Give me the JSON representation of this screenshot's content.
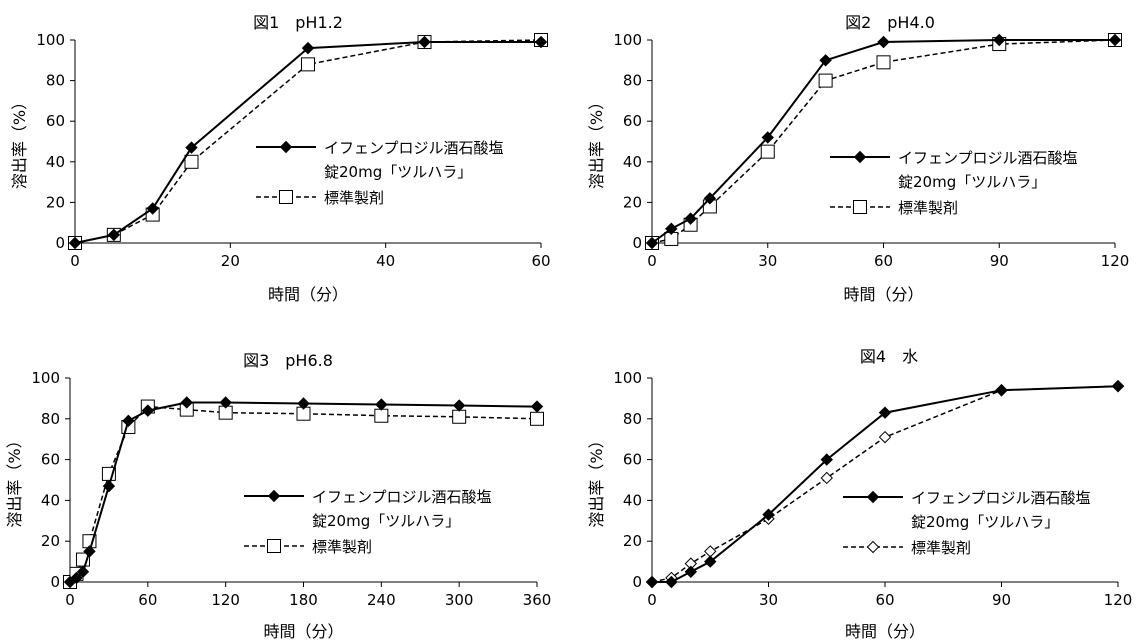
{
  "chart_data": [
    {
      "type": "line",
      "title": "図1　pH1.2",
      "xlabel": "時間（分）",
      "ylabel": "溶出率（%）",
      "xlim": [
        0,
        60
      ],
      "ylim": [
        0,
        100
      ],
      "xticks": [
        0,
        20,
        40,
        60
      ],
      "yticks": [
        0,
        20,
        40,
        60,
        80,
        100
      ],
      "grid": false,
      "legend_position": "center-right",
      "series": [
        {
          "name": "イフェンプロジル酒石酸塩 錠20mg「ツルハラ」",
          "legend_lines": [
            "イフェンプロジル酒石酸塩",
            "錠20mg「ツルハラ」"
          ],
          "marker": "filled-diamond",
          "line": "solid",
          "x": [
            0,
            5,
            10,
            15,
            30,
            45,
            60
          ],
          "y": [
            0,
            4,
            17,
            47,
            96,
            99,
            99
          ]
        },
        {
          "name": "標準製剤",
          "legend_lines": [
            "標準製剤"
          ],
          "marker": "open-square",
          "line": "dashed",
          "x": [
            0,
            5,
            10,
            15,
            30,
            45,
            60
          ],
          "y": [
            0,
            4,
            14,
            40,
            88,
            99,
            100
          ]
        }
      ]
    },
    {
      "type": "line",
      "title": "図2　pH4.0",
      "xlabel": "時間（分）",
      "ylabel": "溶出率（%）",
      "xlim": [
        0,
        120
      ],
      "ylim": [
        0,
        100
      ],
      "xticks": [
        0,
        30,
        60,
        90,
        120
      ],
      "yticks": [
        0,
        20,
        40,
        60,
        80,
        100
      ],
      "grid": false,
      "legend_position": "center-right",
      "series": [
        {
          "name": "イフェンプロジル酒石酸塩 錠20mg「ツルハラ」",
          "legend_lines": [
            "イフェンプロジル酒石酸塩",
            "錠20mg「ツルハラ」"
          ],
          "marker": "filled-diamond",
          "line": "solid",
          "x": [
            0,
            5,
            10,
            15,
            30,
            45,
            60,
            90,
            120
          ],
          "y": [
            0,
            7,
            12,
            22,
            52,
            90,
            99,
            100,
            100
          ]
        },
        {
          "name": "標準製剤",
          "legend_lines": [
            "標準製剤"
          ],
          "marker": "open-square",
          "line": "dashed",
          "x": [
            0,
            5,
            10,
            15,
            30,
            45,
            60,
            90,
            120
          ],
          "y": [
            0,
            2,
            9,
            18,
            45,
            80,
            89,
            98,
            100
          ]
        }
      ]
    },
    {
      "type": "line",
      "title": "図3　pH6.8",
      "xlabel": "時間（分）",
      "ylabel": "溶出率（%）",
      "xlim": [
        0,
        360
      ],
      "ylim": [
        0,
        100
      ],
      "xticks": [
        0,
        60,
        120,
        180,
        240,
        300,
        360
      ],
      "yticks": [
        0,
        20,
        40,
        60,
        80,
        100
      ],
      "grid": false,
      "legend_position": "center-right",
      "series": [
        {
          "name": "イフェンプロジル酒石酸塩 錠20mg「ツルハラ」",
          "legend_lines": [
            "イフェンプロジル酒石酸塩",
            "錠20mg「ツルハラ」"
          ],
          "marker": "filled-diamond",
          "line": "solid",
          "x": [
            0,
            5,
            10,
            15,
            30,
            45,
            60,
            90,
            120,
            180,
            240,
            300,
            360
          ],
          "y": [
            0,
            2,
            5,
            15,
            47,
            79,
            84,
            88,
            88,
            87.5,
            87,
            86.5,
            86
          ]
        },
        {
          "name": "標準製剤",
          "legend_lines": [
            "標準製剤"
          ],
          "marker": "open-square",
          "line": "dashed",
          "x": [
            0,
            5,
            10,
            15,
            30,
            45,
            60,
            90,
            120,
            180,
            240,
            300,
            360
          ],
          "y": [
            0,
            4,
            11,
            20,
            53,
            76,
            86,
            84.5,
            83,
            82.5,
            81.5,
            81,
            80
          ]
        }
      ]
    },
    {
      "type": "line",
      "title": "図4　水",
      "xlabel": "時間（分）",
      "ylabel": "溶出率（%）",
      "xlim": [
        0,
        120
      ],
      "ylim": [
        0,
        100
      ],
      "xticks": [
        0,
        30,
        60,
        90,
        120
      ],
      "yticks": [
        0,
        20,
        40,
        60,
        80,
        100
      ],
      "grid": false,
      "legend_position": "center-right",
      "series": [
        {
          "name": "イフェンプロジル酒石酸塩 錠20mg「ツルハラ」",
          "legend_lines": [
            "イフェンプロジル酒石酸塩",
            "錠20mg「ツルハラ」"
          ],
          "marker": "filled-diamond",
          "line": "solid",
          "x": [
            0,
            5,
            10,
            15,
            30,
            45,
            60,
            90,
            120
          ],
          "y": [
            0,
            0,
            5,
            10,
            33,
            60,
            83,
            94,
            96
          ]
        },
        {
          "name": "標準製剤",
          "legend_lines": [
            "標準製剤"
          ],
          "marker": "open-diamond",
          "line": "dashed",
          "x": [
            0,
            5,
            10,
            15,
            30,
            45,
            60,
            90,
            120
          ],
          "y": [
            0,
            2,
            9,
            15,
            31,
            51,
            71,
            94,
            96
          ]
        }
      ]
    }
  ]
}
